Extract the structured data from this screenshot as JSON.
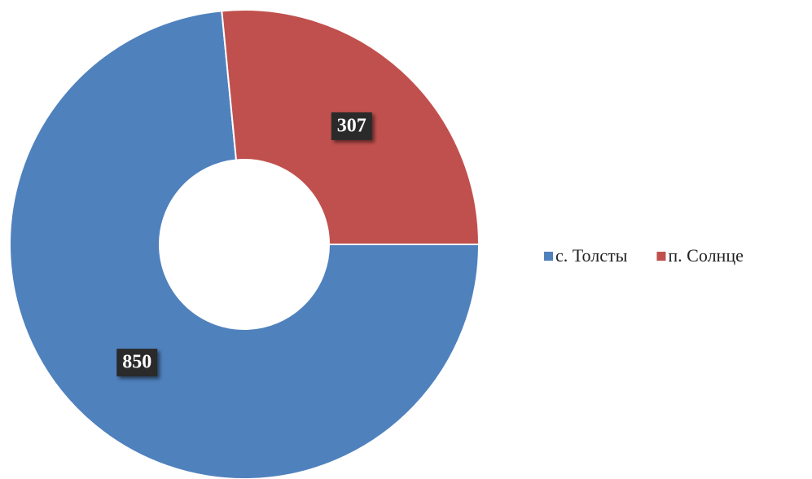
{
  "chart_data": {
    "type": "donut",
    "categories": [
      "с. Толсты",
      "п. Солнце"
    ],
    "values": [
      850,
      307
    ],
    "colors": [
      "#4f81bd",
      "#c0504d"
    ],
    "legend": "right"
  }
}
